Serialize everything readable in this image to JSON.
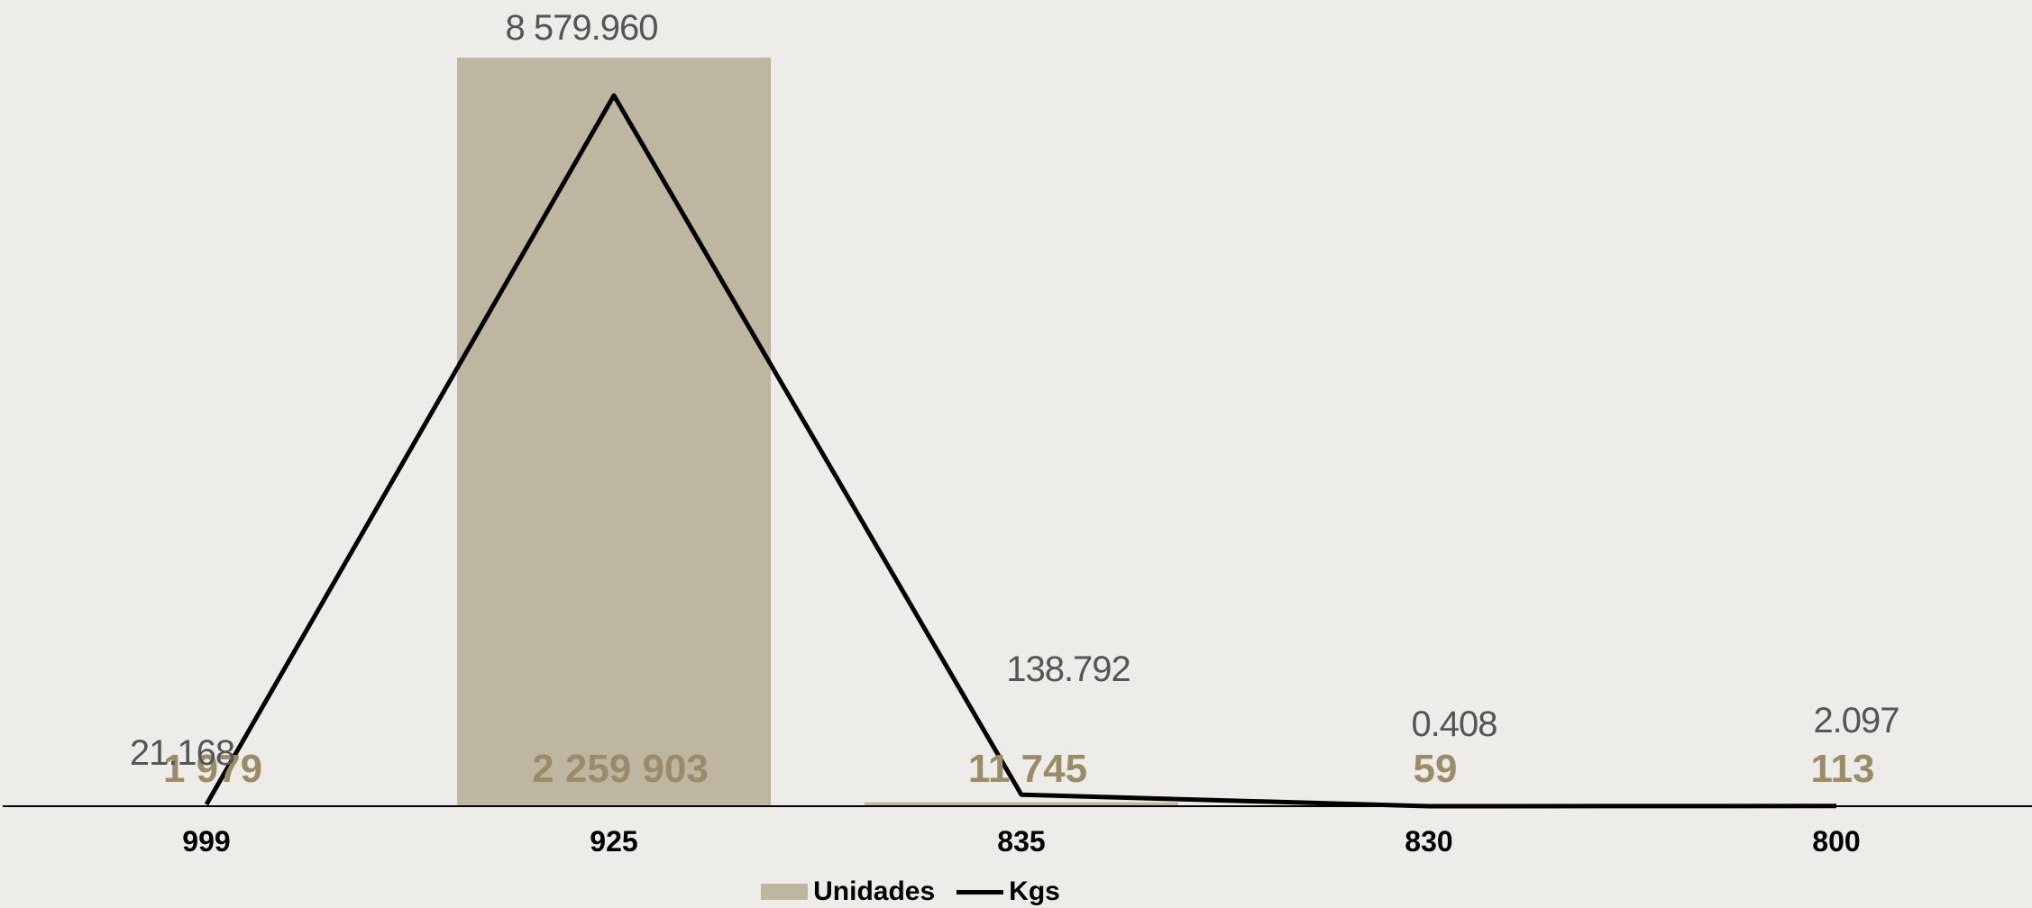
{
  "chart_data": {
    "type": "bar",
    "categories": [
      "999",
      "925",
      "835",
      "830",
      "800"
    ],
    "series": [
      {
        "name": "Unidades",
        "type": "bar",
        "values": [
          1979,
          2259903,
          11745,
          59,
          113
        ],
        "labels": [
          "1 979",
          "2 259 903",
          "11 745",
          "59",
          "113"
        ]
      },
      {
        "name": "Kgs",
        "type": "line",
        "values": [
          21.168,
          8579.96,
          138.792,
          0.408,
          2.097
        ],
        "labels": [
          "21.168",
          "8 579.960",
          "138.792",
          "0.408",
          "2.097"
        ]
      }
    ],
    "title": "",
    "xlabel": "",
    "ylabel": "",
    "grid": false,
    "legend_position": "bottom",
    "colors": {
      "bar": "#bfb6a1",
      "line": "#000000",
      "bar_label": "#9a8b6a",
      "line_label": "#555555",
      "axis_label": "#000000",
      "background": "#eeece8"
    }
  }
}
